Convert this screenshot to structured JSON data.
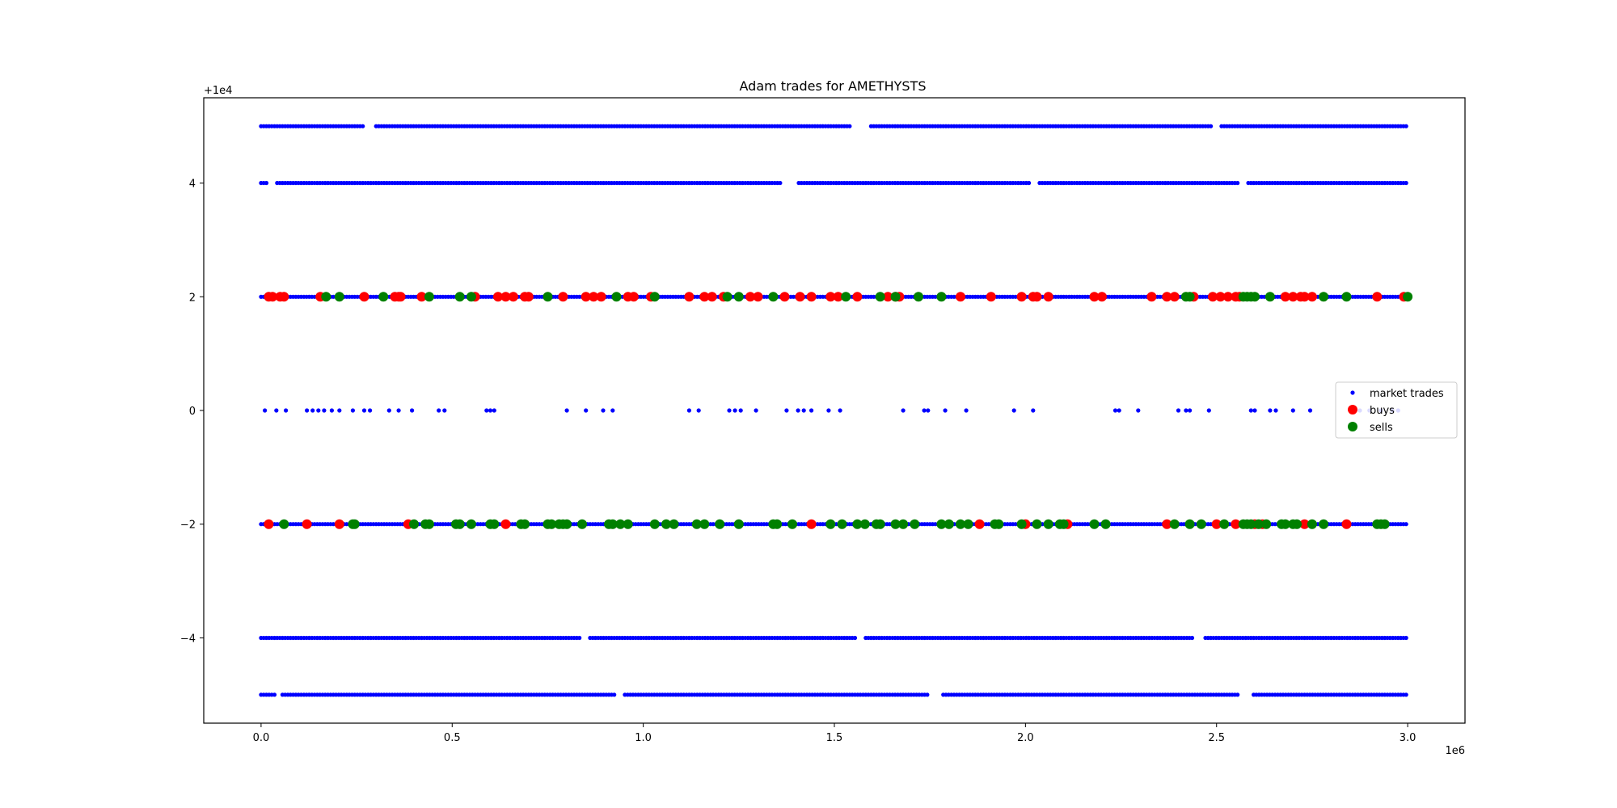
{
  "chart_data": {
    "type": "scatter",
    "title": "Adam trades for AMETHYSTS",
    "xlabel": "",
    "ylabel": "",
    "x_offset_label": "1e6",
    "y_offset_label": "+1e4",
    "xlim": [
      -150000,
      3150000
    ],
    "ylim": [
      -5.5,
      5.5
    ],
    "x_ticks": [
      0,
      500000,
      1000000,
      1500000,
      2000000,
      2500000,
      3000000
    ],
    "x_tick_labels": [
      "0.0",
      "0.5",
      "1.0",
      "1.5",
      "2.0",
      "2.5",
      "3.0"
    ],
    "y_ticks": [
      -4,
      -2,
      0,
      2,
      4
    ],
    "y_tick_labels": [
      "−4",
      "−2",
      "0",
      "2",
      "4"
    ],
    "legend": {
      "placement": "center-right",
      "entries": [
        "market trades",
        "buys",
        "sells"
      ]
    },
    "grid": false,
    "series": [
      {
        "name": "market trades",
        "color": "#0000ff",
        "marker": "small-dot",
        "levels": [
          {
            "y": 5,
            "x_range": [
              0,
              3000000
            ],
            "gaps": [
              [
                270000,
                300000
              ],
              [
                1545000,
                1590000
              ],
              [
                2490000,
                2510000
              ]
            ]
          },
          {
            "y": 4,
            "x_range": [
              0,
              3000000
            ],
            "gaps": [
              [
                20000,
                40000
              ],
              [
                1360000,
                1400000
              ],
              [
                2010000,
                2030000
              ],
              [
                2560000,
                2580000
              ]
            ]
          },
          {
            "y": 2,
            "x_range": [
              0,
              3000000
            ],
            "gaps": []
          },
          {
            "y": 0,
            "x": [
              10000,
              40000,
              65000,
              120000,
              135000,
              150000,
              165000,
              185000,
              205000,
              240000,
              270000,
              285000,
              335000,
              360000,
              395000,
              465000,
              480000,
              590000,
              600000,
              610000,
              800000,
              850000,
              895000,
              920000,
              1120000,
              1145000,
              1225000,
              1240000,
              1255000,
              1295000,
              1375000,
              1405000,
              1420000,
              1440000,
              1485000,
              1515000,
              1680000,
              1735000,
              1745000,
              1790000,
              1845000,
              1970000,
              2020000,
              2235000,
              2245000,
              2295000,
              2400000,
              2420000,
              2430000,
              2480000,
              2590000,
              2600000,
              2640000,
              2655000,
              2700000,
              2745000,
              2860000,
              2875000,
              2900000,
              2930000,
              2960000,
              2975000
            ]
          },
          {
            "y": -2,
            "x_range": [
              0,
              3000000
            ],
            "gaps": []
          },
          {
            "y": -4,
            "x_range": [
              0,
              3000000
            ],
            "gaps": [
              [
                840000,
                860000
              ],
              [
                1560000,
                1580000
              ],
              [
                2440000,
                2470000
              ]
            ]
          },
          {
            "y": -5,
            "x_range": [
              0,
              3000000
            ],
            "gaps": [
              [
                40000,
                55000
              ],
              [
                930000,
                950000
              ],
              [
                1750000,
                1780000
              ],
              [
                2560000,
                2590000
              ]
            ]
          }
        ]
      },
      {
        "name": "buys",
        "color": "#ff0000",
        "marker": "large-dot",
        "points": [
          {
            "y": 2,
            "x": [
              20000,
              30000,
              50000,
              60000,
              155000,
              270000,
              350000,
              360000,
              365000,
              420000,
              560000,
              620000,
              640000,
              660000,
              690000,
              700000,
              790000,
              850000,
              870000,
              890000,
              960000,
              975000,
              1020000,
              1120000,
              1160000,
              1180000,
              1210000,
              1280000,
              1300000,
              1370000,
              1410000,
              1440000,
              1490000,
              1510000,
              1560000,
              1640000,
              1660000,
              1670000,
              1830000,
              1910000,
              1990000,
              2020000,
              2030000,
              2060000,
              2180000,
              2200000,
              2330000,
              2370000,
              2390000,
              2440000,
              2490000,
              2510000,
              2530000,
              2550000,
              2560000,
              2680000,
              2700000,
              2720000,
              2730000,
              2750000,
              2920000,
              2990000
            ]
          },
          {
            "y": -2,
            "x": [
              20000,
              120000,
              205000,
              385000,
              640000,
              1440000,
              1880000,
              2000000,
              2110000,
              2370000,
              2500000,
              2550000,
              2600000,
              2620000,
              2730000,
              2840000
            ]
          }
        ]
      },
      {
        "name": "sells",
        "color": "#008000",
        "marker": "large-dot",
        "points": [
          {
            "y": 2,
            "x": [
              170000,
              205000,
              320000,
              440000,
              520000,
              550000,
              750000,
              930000,
              1030000,
              1220000,
              1250000,
              1340000,
              1530000,
              1620000,
              1660000,
              1720000,
              1780000,
              2420000,
              2430000,
              2570000,
              2580000,
              2590000,
              2600000,
              2640000,
              2780000,
              2840000,
              3000000
            ]
          },
          {
            "y": -2,
            "x": [
              60000,
              240000,
              245000,
              400000,
              430000,
              440000,
              510000,
              520000,
              550000,
              600000,
              610000,
              680000,
              690000,
              750000,
              760000,
              780000,
              790000,
              800000,
              840000,
              910000,
              920000,
              940000,
              960000,
              1030000,
              1060000,
              1080000,
              1140000,
              1160000,
              1200000,
              1250000,
              1340000,
              1350000,
              1390000,
              1490000,
              1520000,
              1560000,
              1580000,
              1610000,
              1620000,
              1660000,
              1680000,
              1710000,
              1780000,
              1800000,
              1830000,
              1850000,
              1920000,
              1930000,
              1990000,
              2030000,
              2060000,
              2090000,
              2100000,
              2180000,
              2210000,
              2390000,
              2430000,
              2460000,
              2520000,
              2570000,
              2580000,
              2590000,
              2610000,
              2630000,
              2670000,
              2680000,
              2700000,
              2710000,
              2750000,
              2780000,
              2920000,
              2930000,
              2940000
            ]
          }
        ]
      }
    ]
  }
}
